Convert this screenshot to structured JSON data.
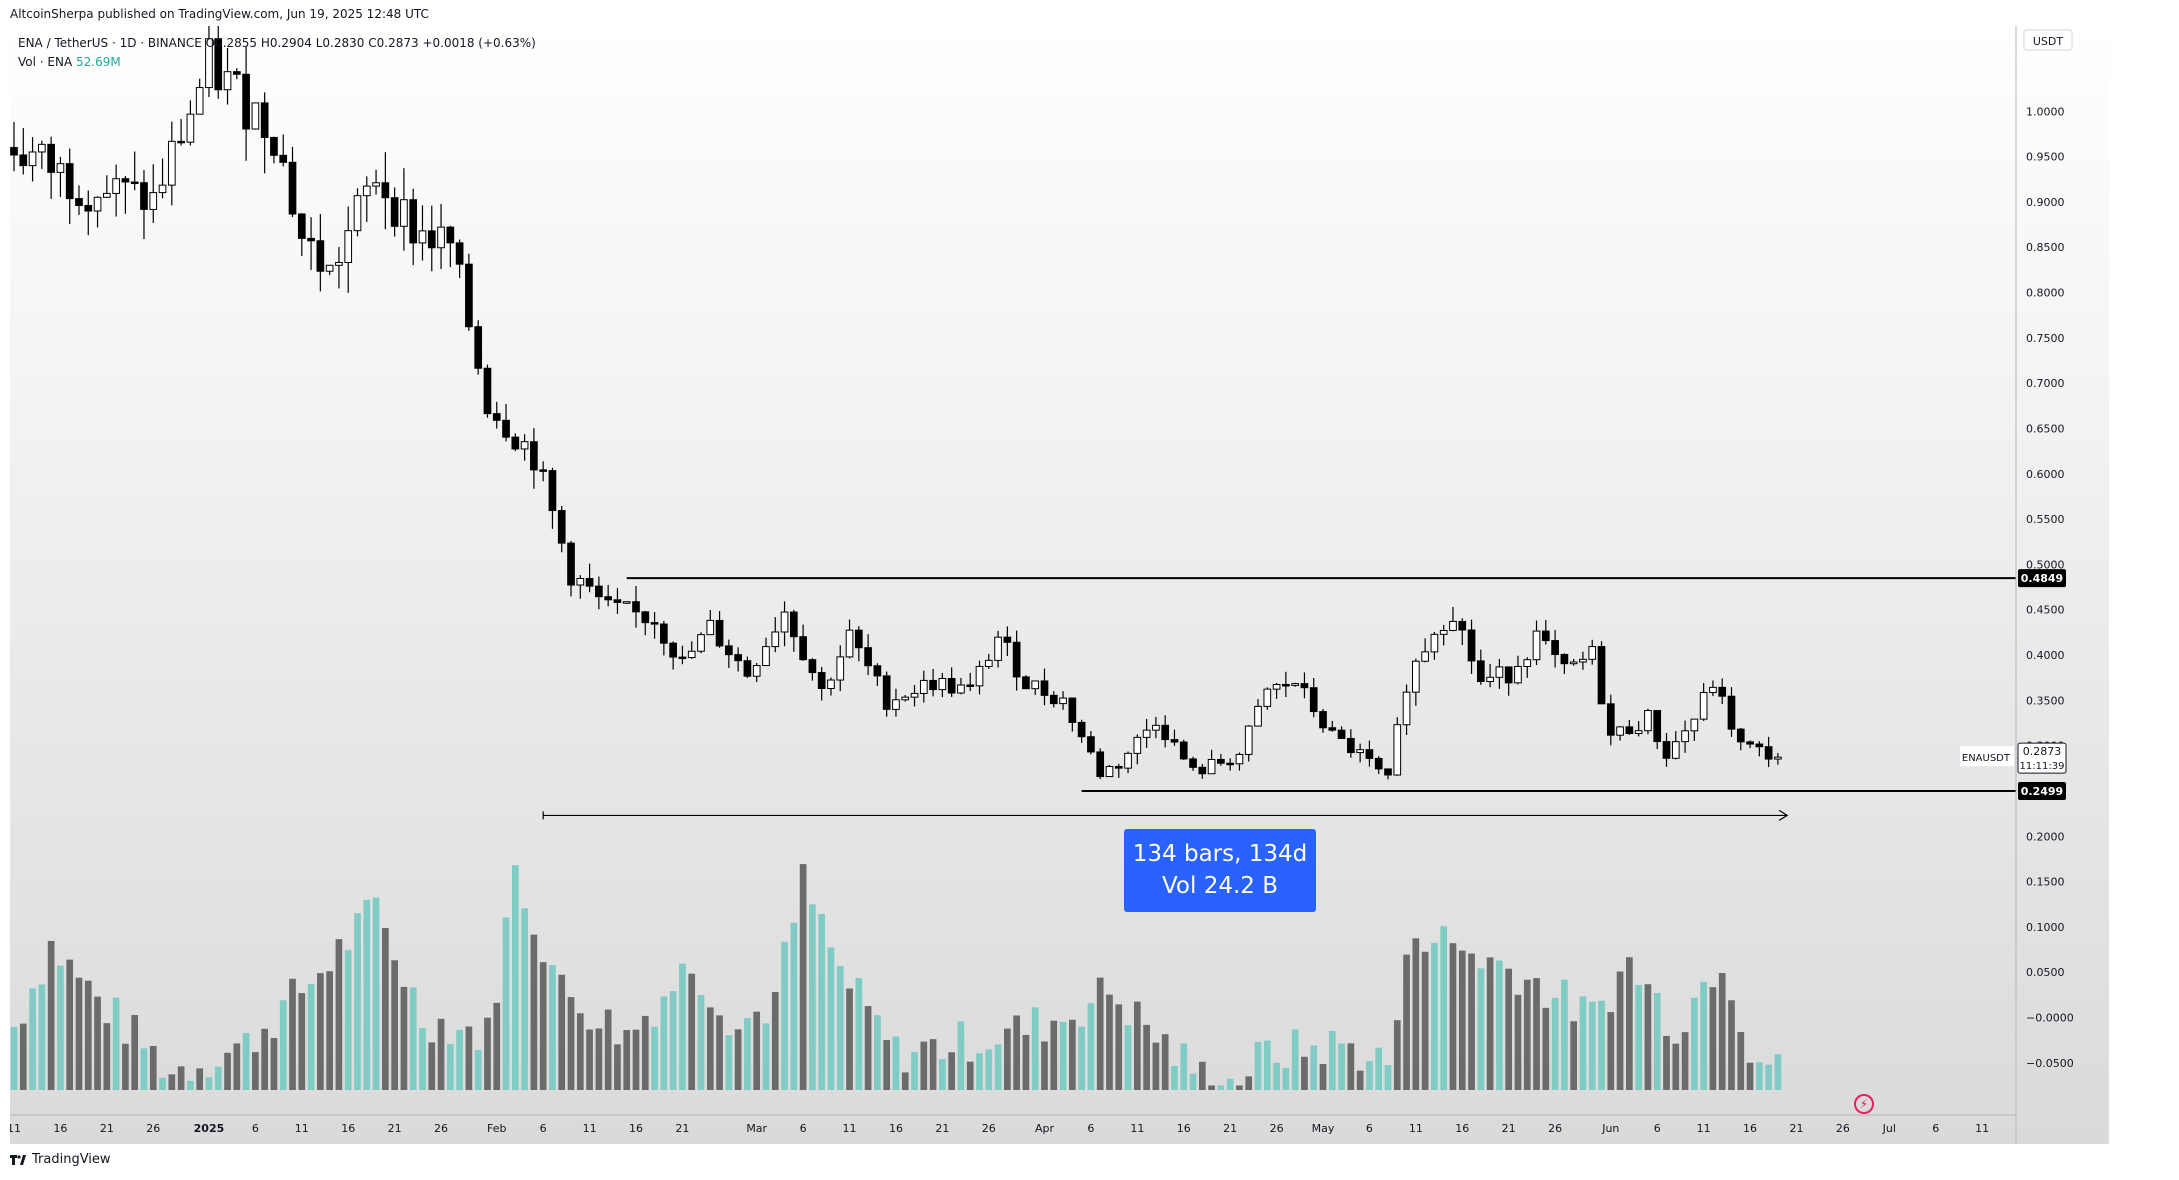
{
  "header": {
    "publisher_text": "AltcoinSherpa published on TradingView.com, Jun 19, 2025 12:48 UTC"
  },
  "legend": {
    "symbol_text": "ENA / TetherUS · 1D · BINANCE",
    "open": "O0.2855",
    "high": "H0.2904",
    "low": "L0.2830",
    "close": "C0.2873",
    "change": "+0.0018 (+0.63%)",
    "volume_label": "Vol · ENA",
    "volume_value": "52.69M"
  },
  "axis": {
    "currency": "USDT"
  },
  "price_labels": {
    "resistance": "0.4849",
    "support": "0.2499",
    "symbol_tag": "ENAUSDT",
    "last_price": "0.2873",
    "countdown": "11:11:39"
  },
  "measure": {
    "line1": "134 bars, 134d",
    "line2": "Vol 24.2 B"
  },
  "branding": {
    "logo_text": "TradingView"
  },
  "colors": {
    "background_top": "#ffffff",
    "background_bottom": "#dadada",
    "candle_up": "#ffffff",
    "candle_down": "#000000",
    "volume_up": "#80cbc4",
    "volume_down": "#6b6b6b",
    "measure": "#2962ff"
  },
  "chart_data": {
    "type": "candlestick",
    "xlabel": "",
    "ylabel": "",
    "ylim": [
      -0.08,
      1.05
    ],
    "yticks": [
      1.0,
      0.95,
      0.9,
      0.85,
      0.8,
      0.75,
      0.7,
      0.65,
      0.6,
      0.55,
      0.5,
      0.45,
      0.4,
      0.35,
      0.3,
      0.25,
      0.2,
      0.15,
      0.1,
      0.05,
      0.0,
      -0.05
    ],
    "ytick_labels": [
      "1.0000",
      "0.9500",
      "0.9000",
      "0.8500",
      "0.8000",
      "0.7500",
      "0.7000",
      "0.6500",
      "0.6000",
      "0.5500",
      "0.5000",
      "0.4500",
      "0.4000",
      "0.3500",
      "0.3000",
      "0.2500",
      "0.2000",
      "0.1500",
      "0.1000",
      "0.0500",
      "−0.0000",
      "−0.0500"
    ],
    "grid": false,
    "first_date": "2024-12-11",
    "xticks": [
      {
        "label": "11",
        "date": "2024-12-11"
      },
      {
        "label": "16",
        "date": "2024-12-16"
      },
      {
        "label": "21",
        "date": "2024-12-21"
      },
      {
        "label": "26",
        "date": "2024-12-26"
      },
      {
        "label": "2025",
        "date": "2025-01-01",
        "bold": true
      },
      {
        "label": "6",
        "date": "2025-01-06"
      },
      {
        "label": "11",
        "date": "2025-01-11"
      },
      {
        "label": "16",
        "date": "2025-01-16"
      },
      {
        "label": "21",
        "date": "2025-01-21"
      },
      {
        "label": "26",
        "date": "2025-01-26"
      },
      {
        "label": "Feb",
        "date": "2025-02-01"
      },
      {
        "label": "6",
        "date": "2025-02-06"
      },
      {
        "label": "11",
        "date": "2025-02-11"
      },
      {
        "label": "16",
        "date": "2025-02-16"
      },
      {
        "label": "21",
        "date": "2025-02-21"
      },
      {
        "label": "Mar",
        "date": "2025-03-01"
      },
      {
        "label": "6",
        "date": "2025-03-06"
      },
      {
        "label": "11",
        "date": "2025-03-11"
      },
      {
        "label": "16",
        "date": "2025-03-16"
      },
      {
        "label": "21",
        "date": "2025-03-21"
      },
      {
        "label": "26",
        "date": "2025-03-26"
      },
      {
        "label": "Apr",
        "date": "2025-04-01"
      },
      {
        "label": "6",
        "date": "2025-04-06"
      },
      {
        "label": "11",
        "date": "2025-04-11"
      },
      {
        "label": "16",
        "date": "2025-04-16"
      },
      {
        "label": "21",
        "date": "2025-04-21"
      },
      {
        "label": "26",
        "date": "2025-04-26"
      },
      {
        "label": "May",
        "date": "2025-05-01"
      },
      {
        "label": "6",
        "date": "2025-05-06"
      },
      {
        "label": "11",
        "date": "2025-05-11"
      },
      {
        "label": "16",
        "date": "2025-05-16"
      },
      {
        "label": "21",
        "date": "2025-05-21"
      },
      {
        "label": "26",
        "date": "2025-05-26"
      },
      {
        "label": "Jun",
        "date": "2025-06-01"
      },
      {
        "label": "6",
        "date": "2025-06-06"
      },
      {
        "label": "11",
        "date": "2025-06-11"
      },
      {
        "label": "16",
        "date": "2025-06-16"
      },
      {
        "label": "21",
        "date": "2025-06-21"
      },
      {
        "label": "26",
        "date": "2025-06-26"
      },
      {
        "label": "Jul",
        "date": "2025-07-01"
      },
      {
        "label": "6",
        "date": "2025-07-06"
      },
      {
        "label": "11",
        "date": "2025-07-11"
      }
    ],
    "x_end_date": "2025-07-14",
    "hlines": [
      {
        "name": "resistance",
        "value": 0.4849,
        "from_date": "2025-02-15"
      },
      {
        "name": "support",
        "value": 0.2499,
        "from_date": "2025-04-05"
      }
    ],
    "measure_range": {
      "from_date": "2025-02-06",
      "to_date": "2025-06-20",
      "bars": 134,
      "days": 134,
      "volume": "24.2 B"
    },
    "price_anchors": [
      {
        "date": "2024-12-11",
        "price": 0.96
      },
      {
        "date": "2024-12-18",
        "price": 0.92
      },
      {
        "date": "2024-12-26",
        "price": 0.9
      },
      {
        "date": "2025-01-01",
        "price": 1.05
      },
      {
        "date": "2025-01-08",
        "price": 0.98
      },
      {
        "date": "2025-01-11",
        "price": 0.86
      },
      {
        "date": "2025-01-14",
        "price": 0.82
      },
      {
        "date": "2025-01-19",
        "price": 0.93
      },
      {
        "date": "2025-01-23",
        "price": 0.87
      },
      {
        "date": "2025-01-27",
        "price": 0.85
      },
      {
        "date": "2025-01-31",
        "price": 0.68
      },
      {
        "date": "2025-02-05",
        "price": 0.62
      },
      {
        "date": "2025-02-09",
        "price": 0.49
      },
      {
        "date": "2025-02-13",
        "price": 0.45
      },
      {
        "date": "2025-02-18",
        "price": 0.44
      },
      {
        "date": "2025-02-21",
        "price": 0.39
      },
      {
        "date": "2025-02-24",
        "price": 0.43
      },
      {
        "date": "2025-02-28",
        "price": 0.38
      },
      {
        "date": "2025-03-04",
        "price": 0.45
      },
      {
        "date": "2025-03-08",
        "price": 0.36
      },
      {
        "date": "2025-03-11",
        "price": 0.42
      },
      {
        "date": "2025-03-15",
        "price": 0.35
      },
      {
        "date": "2025-03-20",
        "price": 0.37
      },
      {
        "date": "2025-03-24",
        "price": 0.36
      },
      {
        "date": "2025-03-27",
        "price": 0.42
      },
      {
        "date": "2025-03-30",
        "price": 0.37
      },
      {
        "date": "2025-04-03",
        "price": 0.35
      },
      {
        "date": "2025-04-07",
        "price": 0.27
      },
      {
        "date": "2025-04-09",
        "price": 0.28
      },
      {
        "date": "2025-04-13",
        "price": 0.33
      },
      {
        "date": "2025-04-17",
        "price": 0.27
      },
      {
        "date": "2025-04-22",
        "price": 0.29
      },
      {
        "date": "2025-04-25",
        "price": 0.36
      },
      {
        "date": "2025-04-28",
        "price": 0.37
      },
      {
        "date": "2025-05-02",
        "price": 0.31
      },
      {
        "date": "2025-05-05",
        "price": 0.29
      },
      {
        "date": "2025-05-08",
        "price": 0.26
      },
      {
        "date": "2025-05-10",
        "price": 0.37
      },
      {
        "date": "2025-05-13",
        "price": 0.43
      },
      {
        "date": "2025-05-15",
        "price": 0.45
      },
      {
        "date": "2025-05-18",
        "price": 0.37
      },
      {
        "date": "2025-05-21",
        "price": 0.38
      },
      {
        "date": "2025-05-24",
        "price": 0.42
      },
      {
        "date": "2025-05-27",
        "price": 0.38
      },
      {
        "date": "2025-05-30",
        "price": 0.4
      },
      {
        "date": "2025-06-01",
        "price": 0.31
      },
      {
        "date": "2025-06-05",
        "price": 0.33
      },
      {
        "date": "2025-06-07",
        "price": 0.29
      },
      {
        "date": "2025-06-10",
        "price": 0.33
      },
      {
        "date": "2025-06-12",
        "price": 0.37
      },
      {
        "date": "2025-06-15",
        "price": 0.3
      },
      {
        "date": "2025-06-19",
        "price": 0.2873
      }
    ],
    "volume_anchors": [
      {
        "date": "2024-12-11",
        "value": -0.01
      },
      {
        "date": "2024-12-15",
        "value": 0.08
      },
      {
        "date": "2024-12-20",
        "value": 0.02
      },
      {
        "date": "2024-12-28",
        "value": -0.06
      },
      {
        "date": "2025-01-05",
        "value": -0.03
      },
      {
        "date": "2025-01-12",
        "value": 0.04
      },
      {
        "date": "2025-01-19",
        "value": 0.12
      },
      {
        "date": "2025-01-24",
        "value": 0.0
      },
      {
        "date": "2025-01-31",
        "value": -0.02
      },
      {
        "date": "2025-02-03",
        "value": 0.16
      },
      {
        "date": "2025-02-08",
        "value": 0.03
      },
      {
        "date": "2025-02-15",
        "value": -0.02
      },
      {
        "date": "2025-02-22",
        "value": 0.06
      },
      {
        "date": "2025-02-27",
        "value": -0.01
      },
      {
        "date": "2025-03-03",
        "value": 0.02
      },
      {
        "date": "2025-03-06",
        "value": 0.15
      },
      {
        "date": "2025-03-10",
        "value": 0.05
      },
      {
        "date": "2025-03-16",
        "value": -0.04
      },
      {
        "date": "2025-03-27",
        "value": -0.02
      },
      {
        "date": "2025-04-03",
        "value": 0.0
      },
      {
        "date": "2025-04-08",
        "value": 0.03
      },
      {
        "date": "2025-04-15",
        "value": -0.04
      },
      {
        "date": "2025-04-20",
        "value": -0.08
      },
      {
        "date": "2025-04-25",
        "value": -0.04
      },
      {
        "date": "2025-05-03",
        "value": -0.03
      },
      {
        "date": "2025-05-08",
        "value": -0.05
      },
      {
        "date": "2025-05-11",
        "value": 0.1
      },
      {
        "date": "2025-05-15",
        "value": 0.08
      },
      {
        "date": "2025-05-22",
        "value": 0.05
      },
      {
        "date": "2025-05-30",
        "value": 0.0
      },
      {
        "date": "2025-06-03",
        "value": 0.06
      },
      {
        "date": "2025-06-08",
        "value": -0.01
      },
      {
        "date": "2025-06-13",
        "value": 0.07
      },
      {
        "date": "2025-06-16",
        "value": -0.03
      },
      {
        "date": "2025-06-19",
        "value": -0.06
      }
    ]
  }
}
